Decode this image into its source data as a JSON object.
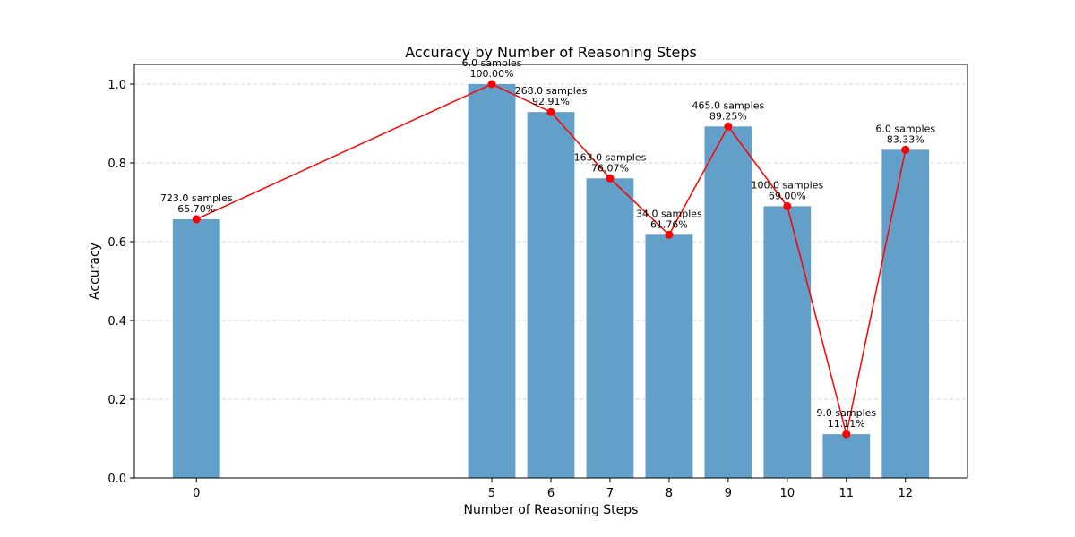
{
  "chart_data": {
    "type": "bar",
    "title": "Accuracy by Number of Reasoning Steps",
    "xlabel": "Number of Reasoning Steps",
    "ylabel": "Accuracy",
    "x": [
      0,
      5,
      6,
      7,
      8,
      9,
      10,
      11,
      12
    ],
    "x_ticks": [
      "0",
      "5",
      "6",
      "7",
      "8",
      "9",
      "10",
      "11",
      "12"
    ],
    "values": [
      0.657,
      1.0,
      0.9291,
      0.7607,
      0.6176,
      0.8925,
      0.69,
      0.1111,
      0.8333
    ],
    "samples_labels": [
      "723.0 samples",
      "6.0 samples",
      "268.0 samples",
      "163.0 samples",
      "34.0 samples",
      "465.0 samples",
      "100.0 samples",
      "9.0 samples",
      "6.0 samples"
    ],
    "percent_labels": [
      "65.70%",
      "100.00%",
      "92.91%",
      "76.07%",
      "61.76%",
      "89.25%",
      "69.00%",
      "11.11%",
      "83.33%"
    ],
    "y_ticks": [
      "0.0",
      "0.2",
      "0.4",
      "0.6",
      "0.8",
      "1.0"
    ],
    "y_tick_values": [
      0,
      0.2,
      0.4,
      0.6,
      0.8,
      1.0
    ],
    "ylim": [
      0,
      1.05
    ],
    "grid": "y-dashed",
    "colors": {
      "bar": "#62a0ca",
      "line": "#ff0000",
      "grid": "#c8c8c8"
    }
  }
}
